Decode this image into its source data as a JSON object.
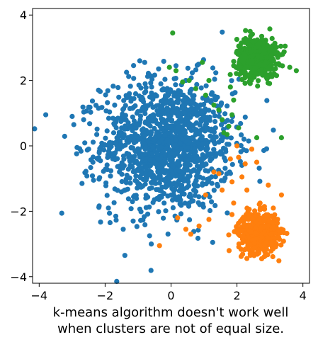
{
  "chart_data": {
    "type": "scatter",
    "title": "",
    "xlabel": "k-means algorithm doesn't work well\nwhen clusters are not of equal size.",
    "ylabel": "",
    "xlim": [
      -4.2,
      4.2
    ],
    "ylim": [
      -4.2,
      4.2
    ],
    "x_ticks": [
      -4,
      -2,
      0,
      2,
      4
    ],
    "y_ticks": [
      -4,
      -2,
      0,
      2,
      4
    ],
    "x_tick_labels": [
      "−4",
      "−2",
      "0",
      "2",
      "4"
    ],
    "y_tick_labels": [
      "−4",
      "−2",
      "0",
      "2",
      "4"
    ],
    "grid": false,
    "legend": "none",
    "series": [
      {
        "color": "#1f77b4",
        "cluster": {
          "center": [
            -0.1,
            0.05
          ],
          "spread": 1.0,
          "points": 1300
        },
        "points": [
          [
            -3.8,
            0.95
          ],
          [
            -3.0,
            0.9
          ],
          [
            -2.95,
            0.65
          ],
          [
            -2.85,
            -0.05
          ],
          [
            -2.7,
            -1.15
          ],
          [
            -2.65,
            0.8
          ],
          [
            -2.5,
            -0.1
          ],
          [
            -2.35,
            -1.05
          ],
          [
            -2.2,
            1.15
          ],
          [
            -1.9,
            -1.9
          ],
          [
            -1.85,
            -2.35
          ],
          [
            -1.45,
            -2.55
          ],
          [
            -1.4,
            -3.35
          ],
          [
            -1.35,
            2.25
          ],
          [
            -1.15,
            -2.3
          ],
          [
            -0.95,
            2.6
          ],
          [
            -0.8,
            2.55
          ],
          [
            -0.65,
            -2.75
          ],
          [
            -0.6,
            -3.0
          ],
          [
            -0.35,
            -1.55
          ],
          [
            0.15,
            2.45
          ],
          [
            0.45,
            2.0
          ],
          [
            0.55,
            -1.75
          ],
          [
            0.95,
            -1.2
          ],
          [
            1.2,
            1.35
          ],
          [
            1.35,
            0.55
          ],
          [
            1.5,
            -0.25
          ],
          [
            1.55,
            0.35
          ],
          [
            1.65,
            -0.45
          ],
          [
            1.7,
            0.05
          ]
        ]
      },
      {
        "color": "#ff7f0e",
        "cluster": {
          "center": [
            2.65,
            -2.65
          ],
          "spread": 0.3,
          "points": 500
        },
        "points": [
          [
            -0.35,
            -3.05
          ],
          [
            0.2,
            -2.2
          ],
          [
            0.45,
            -2.55
          ],
          [
            0.6,
            -2.7
          ],
          [
            0.85,
            -2.45
          ],
          [
            1.05,
            -1.5
          ],
          [
            1.15,
            -2.25
          ],
          [
            1.3,
            -0.8
          ],
          [
            1.45,
            -0.85
          ],
          [
            1.55,
            -1.35
          ],
          [
            1.8,
            -0.4
          ],
          [
            1.85,
            -1.1
          ],
          [
            1.85,
            -2.1
          ],
          [
            1.9,
            -1.75
          ],
          [
            2.0,
            0.0
          ],
          [
            2.05,
            -0.35
          ],
          [
            2.15,
            -0.95
          ],
          [
            2.25,
            -0.55
          ],
          [
            2.3,
            -1.35
          ],
          [
            2.35,
            -2.25
          ],
          [
            2.4,
            -3.3
          ],
          [
            2.45,
            -0.1
          ],
          [
            2.6,
            -0.5
          ],
          [
            2.7,
            -1.75
          ],
          [
            2.75,
            -3.45
          ],
          [
            2.85,
            -3.25
          ],
          [
            2.95,
            -1.2
          ],
          [
            3.05,
            -3.0
          ],
          [
            3.35,
            -1.5
          ],
          [
            3.05,
            -2.15
          ]
        ]
      },
      {
        "color": "#2ca02c",
        "cluster": {
          "center": [
            2.6,
            2.7
          ],
          "spread": 0.3,
          "points": 500
        },
        "points": [
          [
            0.05,
            3.45
          ],
          [
            -0.05,
            2.4
          ],
          [
            0.15,
            2.3
          ],
          [
            0.35,
            1.95
          ],
          [
            0.55,
            2.0
          ],
          [
            0.75,
            1.75
          ],
          [
            0.95,
            2.55
          ],
          [
            1.05,
            1.55
          ],
          [
            1.15,
            2.0
          ],
          [
            1.3,
            1.25
          ],
          [
            1.45,
            1.1
          ],
          [
            1.55,
            0.8
          ],
          [
            1.6,
            0.4
          ],
          [
            1.7,
            0.35
          ],
          [
            1.75,
            0.6
          ],
          [
            1.8,
            1.8
          ],
          [
            1.85,
            0.95
          ],
          [
            1.9,
            1.4
          ],
          [
            2.05,
            0.55
          ],
          [
            2.1,
            3.05
          ],
          [
            2.25,
            2.25
          ],
          [
            2.4,
            3.5
          ],
          [
            2.4,
            2.05
          ],
          [
            2.6,
            0.25
          ],
          [
            2.75,
            3.35
          ],
          [
            3.2,
            2.15
          ],
          [
            3.25,
            2.5
          ],
          [
            3.35,
            0.25
          ],
          [
            3.6,
            2.4
          ],
          [
            3.8,
            2.3
          ]
        ]
      }
    ]
  }
}
